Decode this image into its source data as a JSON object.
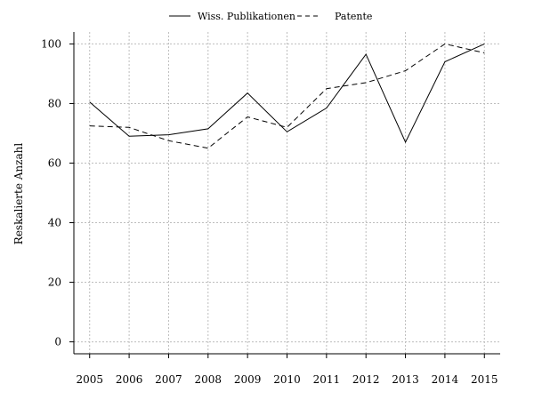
{
  "chart_data": {
    "type": "line",
    "title": "",
    "xlabel": "",
    "ylabel": "Reskalierte Anzahl",
    "x": [
      2005,
      2006,
      2007,
      2008,
      2009,
      2010,
      2011,
      2012,
      2013,
      2014,
      2015
    ],
    "x_tick_labels": [
      "2005",
      "2006",
      "2007",
      "2008",
      "2009",
      "2010",
      "2011",
      "2012",
      "2013",
      "2014",
      "2015"
    ],
    "y_ticks": [
      0,
      20,
      40,
      60,
      80,
      100
    ],
    "y_tick_labels": [
      "0",
      "20",
      "40",
      "60",
      "80",
      "100"
    ],
    "ylim": [
      -4,
      104
    ],
    "xlim": [
      2004.6,
      2015.4
    ],
    "grid": true,
    "legend_position": "top-center",
    "series": [
      {
        "name": "Wiss. Publikationen",
        "line_style": "solid",
        "color": "#000000",
        "values": [
          80.5,
          69,
          69.5,
          71.5,
          83.5,
          70.5,
          78.5,
          96.5,
          67,
          94,
          100
        ]
      },
      {
        "name": "Patente",
        "line_style": "dashed",
        "color": "#000000",
        "values": [
          72.5,
          72,
          67.5,
          65,
          75.5,
          72,
          85,
          87,
          91,
          100,
          97
        ]
      }
    ]
  }
}
